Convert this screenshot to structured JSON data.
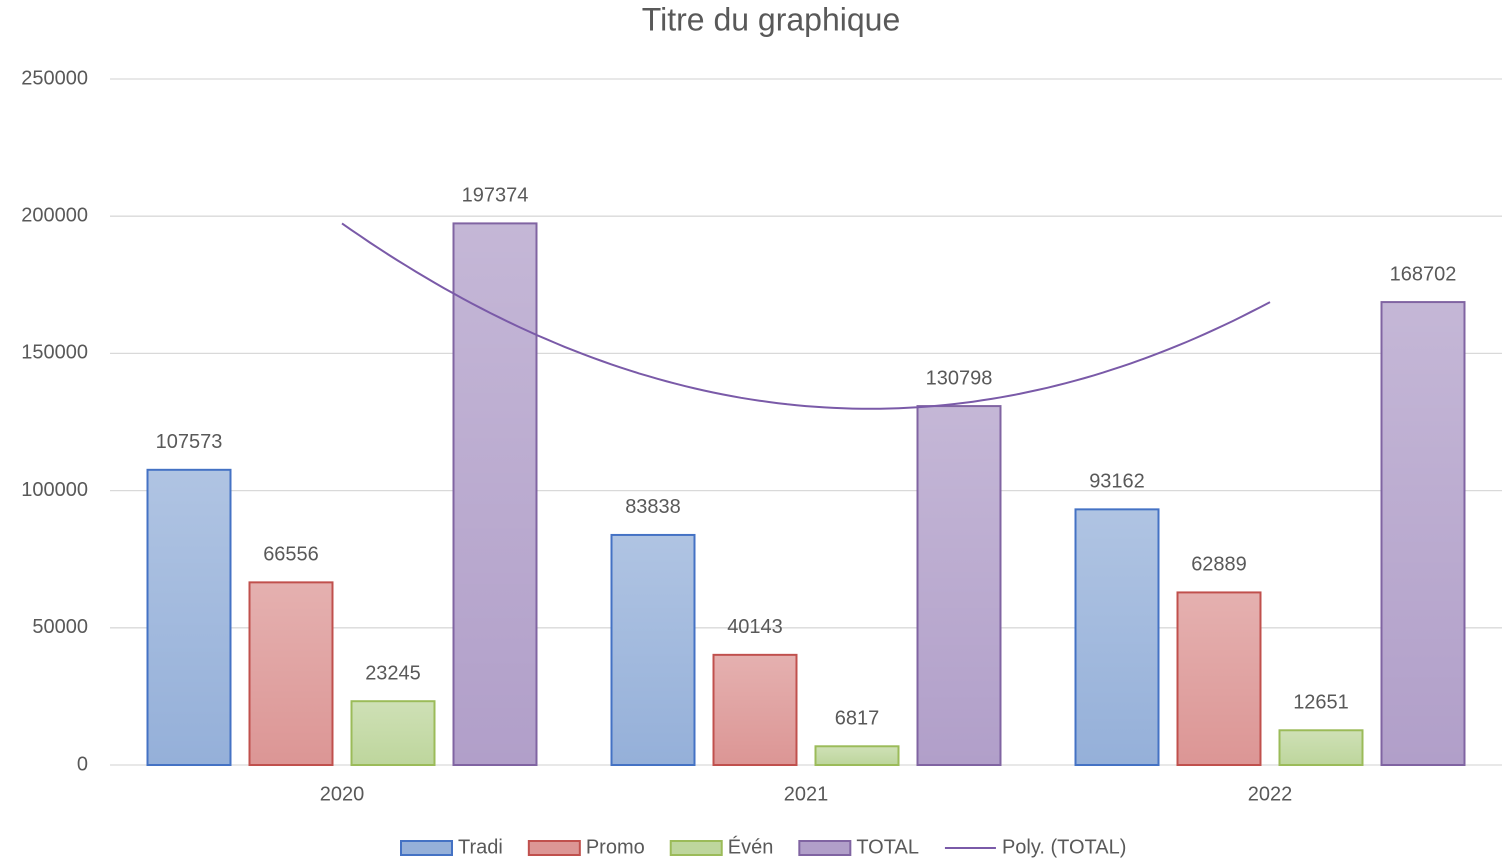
{
  "chart_data": {
    "type": "bar",
    "title": "Titre du graphique",
    "categories": [
      "2020",
      "2021",
      "2022"
    ],
    "series": [
      {
        "name": "Tradi",
        "color": "#95b0d9",
        "edge": "#4472c4",
        "values": [
          107573,
          83838,
          93162
        ]
      },
      {
        "name": "Promo",
        "color": "#dc9695",
        "edge": "#c0504d",
        "values": [
          66556,
          40143,
          62889
        ]
      },
      {
        "name": "Évén",
        "color": "#bed69d",
        "edge": "#9bbb59",
        "values": [
          23245,
          6817,
          12651
        ]
      },
      {
        "name": "TOTAL",
        "color": "#b19fc9",
        "edge": "#8064a2",
        "values": [
          197374,
          130798,
          168702
        ]
      }
    ],
    "trendline": {
      "name": "Poly. (TOTAL)",
      "type": "polynomial",
      "order": 2,
      "series": 3,
      "color": "#7a5aa8"
    },
    "ylim": [
      0,
      250000
    ],
    "yticks": [
      0,
      50000,
      100000,
      150000,
      200000,
      250000
    ],
    "grid": true,
    "legend": "bottom",
    "data_labels": true
  }
}
